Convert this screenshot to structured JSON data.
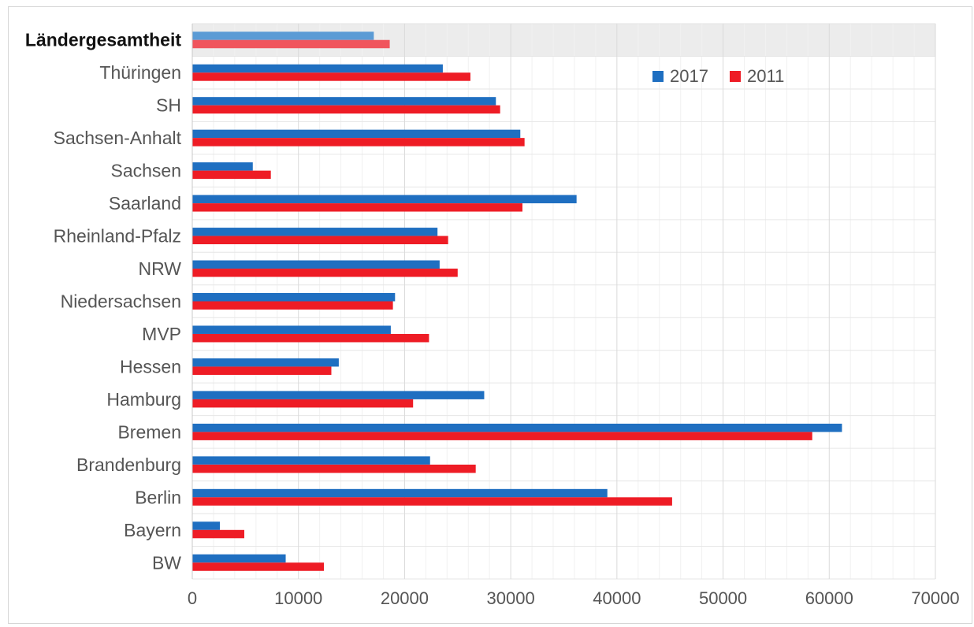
{
  "chart_data": {
    "type": "bar",
    "orientation": "horizontal",
    "title": "",
    "xlabel": "",
    "ylabel": "",
    "categories": [
      "Ländergesamtheit",
      "Thüringen",
      "SH",
      "Sachsen-Anhalt",
      "Sachsen",
      "Saarland",
      "Rheinland-Pfalz",
      "NRW",
      "Niedersachsen",
      "MVP",
      "Hessen",
      "Hamburg",
      "Bremen",
      "Brandenburg",
      "Berlin",
      "Bayern",
      "BW"
    ],
    "highlighted_category": "Ländergesamtheit",
    "series": [
      {
        "name": "2017",
        "color": "#1f6fc1",
        "values": [
          17100,
          23600,
          28600,
          30900,
          5700,
          36200,
          23100,
          23300,
          19100,
          18700,
          13800,
          27500,
          61200,
          22400,
          39100,
          2600,
          8800
        ]
      },
      {
        "name": "2011",
        "color": "#ee1c25",
        "values": [
          18600,
          26200,
          29000,
          31300,
          7400,
          31100,
          24100,
          25000,
          18900,
          22300,
          13100,
          20800,
          58400,
          26700,
          45200,
          4900,
          12400
        ]
      }
    ],
    "highlight_colors": {
      "2017": "#5b9bd5",
      "2011": "#f0555d"
    },
    "xlim": [
      0,
      70000
    ],
    "x_ticks": [
      "0",
      "10000",
      "20000",
      "30000",
      "40000",
      "50000",
      "60000",
      "70000"
    ],
    "x_tick_values": [
      0,
      10000,
      20000,
      30000,
      40000,
      50000,
      60000,
      70000
    ],
    "grid": true,
    "legend_position": "top-right"
  }
}
